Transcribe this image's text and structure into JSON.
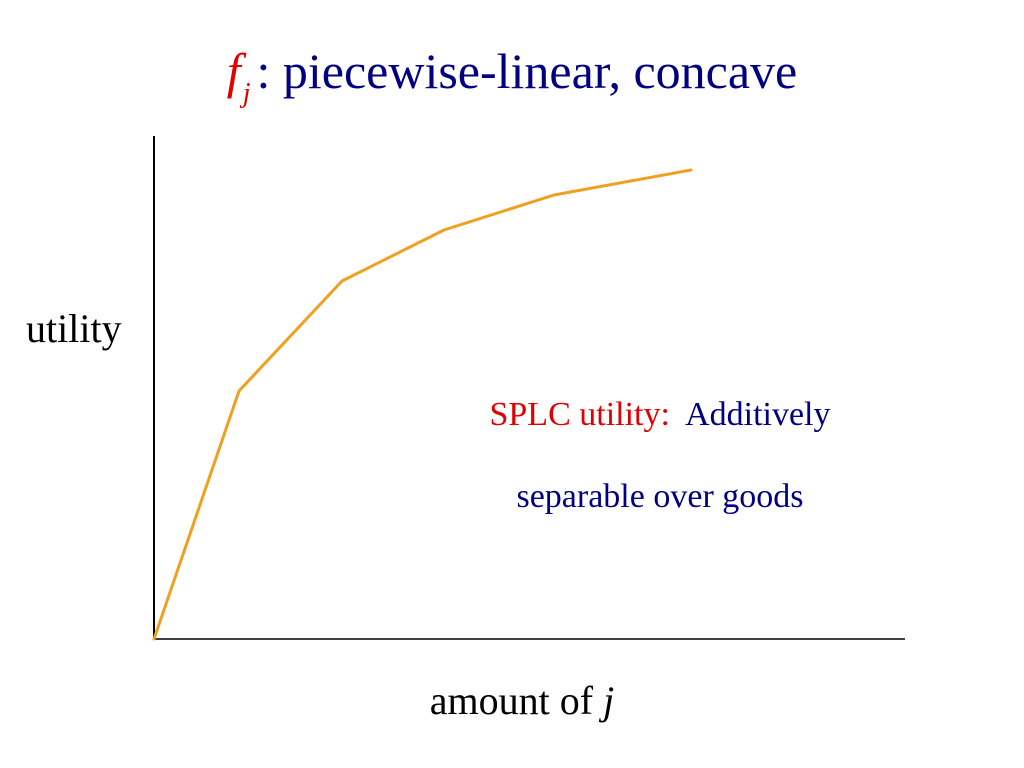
{
  "title": {
    "symbol": "f",
    "subscript": "j",
    "text": ": piecewise-linear, concave"
  },
  "annotation": {
    "label": "SPLC utility:",
    "line1": "Additively",
    "line2": "separable over goods"
  },
  "colors": {
    "title": "#000080",
    "highlight": "#e00000",
    "curve": "#f0a020",
    "axis": "#000000"
  },
  "chart_data": {
    "type": "line",
    "ylabel": "utility",
    "xlabel_prefix": "amount of",
    "xlabel_var": "j",
    "grid": false,
    "legend": "none",
    "xlim": [
      0,
      750
    ],
    "ylim": [
      0,
      500
    ],
    "series": [
      {
        "x": [
          0,
          85,
          188,
          290,
          400,
          537
        ],
        "y": [
          0,
          248,
          358,
          409,
          444,
          469
        ]
      }
    ]
  }
}
